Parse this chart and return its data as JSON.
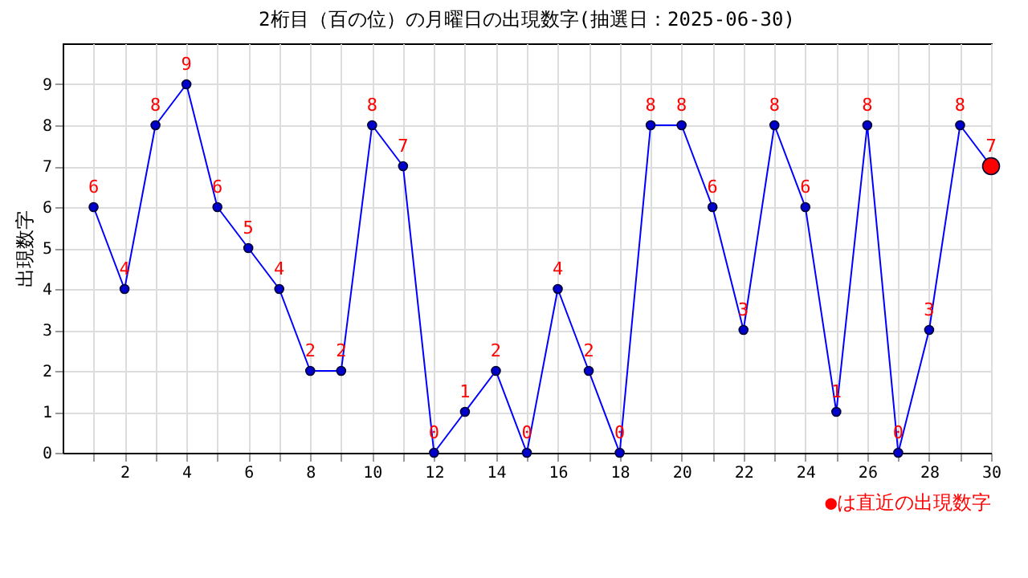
{
  "chart_data": {
    "type": "line",
    "title": "2桁目（百の位）の月曜日の出現数字(抽選日：2025-06-30)",
    "ylabel": "出現数字",
    "x": [
      1,
      2,
      3,
      4,
      5,
      6,
      7,
      8,
      9,
      10,
      11,
      12,
      13,
      14,
      15,
      16,
      17,
      18,
      19,
      20,
      21,
      22,
      23,
      24,
      25,
      26,
      27,
      28,
      29,
      30
    ],
    "series": [
      {
        "color": "#0000ff",
        "values": [
          6,
          4,
          8,
          9,
          6,
          5,
          4,
          2,
          2,
          8,
          7,
          0,
          1,
          2,
          0,
          4,
          2,
          0,
          8,
          8,
          6,
          3,
          8,
          6,
          1,
          8,
          0,
          3,
          8,
          7
        ],
        "colors": [
          "#0000cc",
          "#0000cc",
          "#0000cc",
          "#0000cc",
          "#0000cc",
          "#0000cc",
          "#0000cc",
          "#0000cc",
          "#0000cc",
          "#0000cc",
          "#0000cc",
          "#0000cc",
          "#0000cc",
          "#0000cc",
          "#0000cc",
          "#0000cc",
          "#0000cc",
          "#0000cc",
          "#0000cc",
          "#0000cc",
          "#0000cc",
          "#0000cc",
          "#0000cc",
          "#0000cc",
          "#0000cc",
          "#0000cc",
          "#0000cc",
          "#0000cc",
          "#0000cc",
          "#ff0000"
        ]
      }
    ],
    "xlim": [
      0,
      30
    ],
    "xticks": [
      {
        "value": 1,
        "label": null
      },
      2,
      {
        "value": 3,
        "label": null
      },
      4,
      {
        "value": 5,
        "label": null
      },
      6,
      {
        "value": 7,
        "label": null
      },
      8,
      {
        "value": 9,
        "label": null
      },
      10,
      {
        "value": 11,
        "label": null
      },
      12,
      {
        "value": 13,
        "label": null
      },
      14,
      {
        "value": 15,
        "label": null
      },
      16,
      {
        "value": 17,
        "label": null
      },
      18,
      {
        "value": 19,
        "label": null
      },
      20,
      {
        "value": 21,
        "label": null
      },
      22,
      {
        "value": 23,
        "label": null
      },
      24,
      {
        "value": 25,
        "label": null
      },
      26,
      {
        "value": 27,
        "label": null
      },
      28,
      {
        "value": 29,
        "label": null
      },
      30
    ],
    "ylim": [
      0,
      10
    ],
    "yticks": [
      0,
      1,
      2,
      3,
      4,
      5,
      6,
      7,
      8,
      9
    ],
    "grid": true,
    "marker": "circle",
    "line_style": "solid",
    "data_labels": true,
    "annotations": [
      "●は直近の出現数字"
    ]
  }
}
